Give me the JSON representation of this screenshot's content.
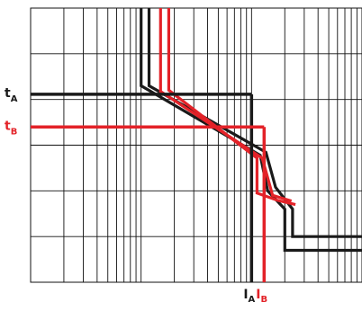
{
  "chart_data": {
    "type": "line",
    "xscale": "log",
    "yscale": "log",
    "grid": true,
    "tick_labels": false,
    "colors": {
      "grid": "#111111",
      "curve_a": "#1a1a1a",
      "curve_b": "#e32228"
    },
    "series": [
      {
        "name": "A",
        "x": [
          1.0,
          1.0,
          12.0,
          14.0,
          14.0,
          20.0,
          20.0,
          100.0
        ],
        "y": [
          10000,
          200,
          6,
          1.0,
          1.0,
          0.4,
          0.05,
          0.05
        ]
      },
      {
        "name": "A",
        "x": [
          1.18,
          1.18,
          13.5,
          16.5,
          16.5,
          23.5,
          23.5,
          100.0
        ],
        "y": [
          10000,
          200,
          7,
          1.2,
          1.2,
          0.4,
          0.1,
          0.1
        ]
      },
      {
        "name": "B",
        "x": [
          1.5,
          1.5,
          12.5,
          15.5,
          23.0
        ],
        "y": [
          10000,
          150,
          5.2,
          0.8,
          0.6
        ]
      },
      {
        "name": "B",
        "x": [
          1.78,
          1.78,
          11.2,
          11.2,
          17.2,
          25.0
        ],
        "y": [
          10000,
          160,
          5.2,
          0.9,
          0.62,
          0.5
        ]
      }
    ],
    "markers": [
      {
        "label": "t",
        "sub": "A",
        "series": "A",
        "y": 130,
        "x_end": 10.0,
        "x_tick_at": 10.0,
        "x_tick_label": "I",
        "x_tick_sub": "A"
      },
      {
        "label": "t",
        "sub": "B",
        "series": "B",
        "y": 25,
        "x_end": 13.0,
        "x_tick_at": 13.0,
        "x_tick_label": "I",
        "x_tick_sub": "B"
      }
    ]
  }
}
